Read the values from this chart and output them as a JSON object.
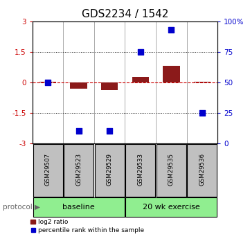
{
  "title": "GDS2234 / 1542",
  "samples": [
    "GSM29507",
    "GSM29523",
    "GSM29529",
    "GSM29533",
    "GSM29535",
    "GSM29536"
  ],
  "log2_ratio": [
    0.02,
    -0.32,
    -0.37,
    0.27,
    0.82,
    0.05
  ],
  "percentile_rank": [
    50,
    10,
    10,
    75,
    93,
    25
  ],
  "ylim_left": [
    -3,
    3
  ],
  "ylim_right": [
    0,
    100
  ],
  "yticks_left": [
    -3,
    -1.5,
    0,
    1.5,
    3
  ],
  "yticks_right": [
    0,
    25,
    50,
    75,
    100
  ],
  "ytick_labels_right": [
    "0",
    "25",
    "50",
    "75",
    "100%"
  ],
  "baseline_label": "baseline",
  "exercise_label": "20 wk exercise",
  "protocol_label": "protocol",
  "legend_red": "log2 ratio",
  "legend_blue": "percentile rank within the sample",
  "bar_color": "#8B1A1A",
  "dot_color": "#0000CD",
  "bar_width": 0.55,
  "dot_size": 40,
  "hline_color": "#CC0000",
  "dotted_color": "#000000",
  "baseline_color": "#90EE90",
  "exercise_color": "#90EE90",
  "sample_box_color": "#C0C0C0",
  "title_fontsize": 11,
  "tick_fontsize": 7.5,
  "label_fontsize": 7,
  "background_color": "#FFFFFF"
}
